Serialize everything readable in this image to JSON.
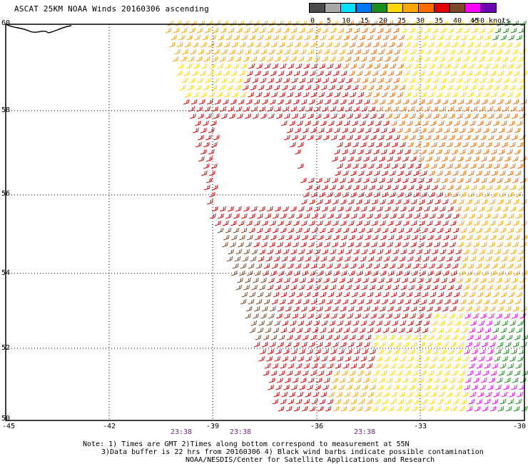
{
  "title": "ASCAT 25KM NOAA Winds 20160306 ascending",
  "legend": {
    "labels": [
      "0",
      "5",
      "10",
      "15",
      "20",
      "25",
      "30",
      "35",
      "40",
      "45",
      ">50 knots"
    ],
    "colors": [
      "#4a4a4a",
      "#a8a8a8",
      "#00e0ff",
      "#0078ff",
      "#1a8f1a",
      "#ffd700",
      "#ffa400",
      "#ff6a00",
      "#e00000",
      "#7a4a2a",
      "#ff00ff",
      "#6a00b0"
    ]
  },
  "axes": {
    "lat_labels": [
      "60",
      "58",
      "56",
      "54",
      "52",
      "50"
    ],
    "lon_labels": [
      "-45",
      "-42",
      "-39",
      "-36",
      "-33",
      "-30"
    ]
  },
  "times": [
    "23:38",
    "23:38",
    "23:38"
  ],
  "notes": {
    "line1": "Note: 1) Times are GMT 2)Times along bottom correspond to measurement at 55N",
    "line2": "3)Data buffer is 22 hrs from 20160306 4) Black wind barbs indicate possible contamination",
    "line3": "NOAA/NESDIS/Center for Satellite Applications and Research"
  },
  "icons": {
    "barb": "wind-barb-icon",
    "coastline": "coastline-icon"
  }
}
